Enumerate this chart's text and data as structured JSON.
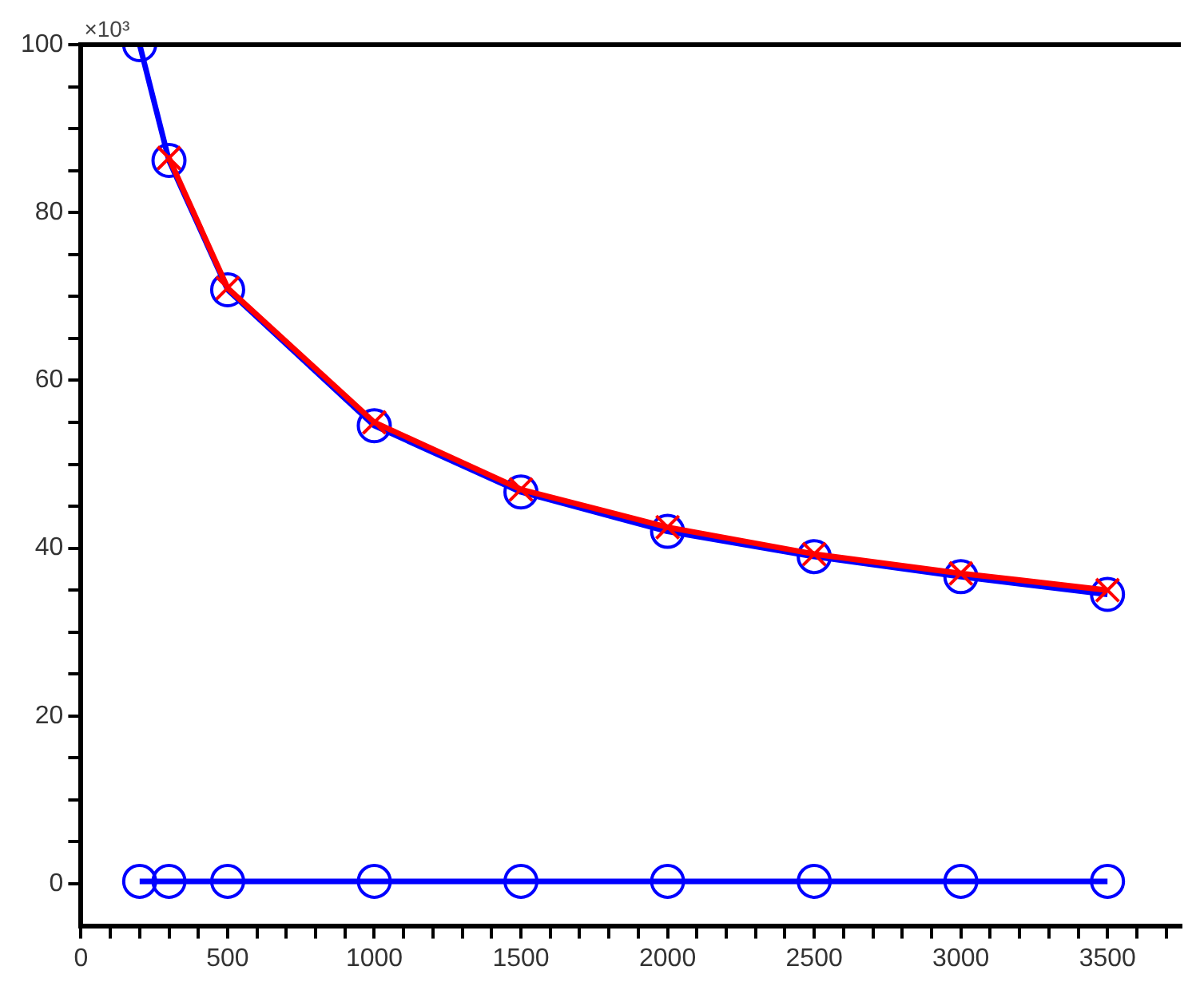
{
  "chart_data": {
    "type": "line",
    "x": [
      200,
      300,
      500,
      1000,
      1500,
      2000,
      2500,
      3000,
      3500
    ],
    "series": [
      {
        "color": "#ff0000",
        "marker": "cross",
        "values": [
          null,
          86.5,
          71,
          55,
          47,
          42.5,
          39.3,
          37,
          35
        ]
      },
      {
        "color": "#0000ff",
        "marker": "circle",
        "values": [
          100,
          86.2,
          70.8,
          54.6,
          46.7,
          42,
          39,
          36.6,
          34.5
        ]
      },
      {
        "color": "#0000ff",
        "marker": "circle",
        "values": [
          0.3,
          0.3,
          0.3,
          0.3,
          0.3,
          0.3,
          0.3,
          0.3,
          0.3
        ]
      }
    ],
    "xlim": [
      0,
      3750
    ],
    "ylim": [
      -5,
      100
    ],
    "xticks": [
      0,
      {
        "value": 100,
        "label": null
      },
      {
        "value": 200,
        "label": null
      },
      {
        "value": 300,
        "label": null
      },
      {
        "value": 400,
        "label": null
      },
      500,
      {
        "value": 600,
        "label": null
      },
      {
        "value": 700,
        "label": null
      },
      {
        "value": 800,
        "label": null
      },
      {
        "value": 900,
        "label": null
      },
      1000,
      {
        "value": 1100,
        "label": null
      },
      {
        "value": 1200,
        "label": null
      },
      {
        "value": 1300,
        "label": null
      },
      {
        "value": 1400,
        "label": null
      },
      1500,
      {
        "value": 1600,
        "label": null
      },
      {
        "value": 1700,
        "label": null
      },
      {
        "value": 1800,
        "label": null
      },
      {
        "value": 1900,
        "label": null
      },
      2000,
      {
        "value": 2100,
        "label": null
      },
      {
        "value": 2200,
        "label": null
      },
      {
        "value": 2300,
        "label": null
      },
      {
        "value": 2400,
        "label": null
      },
      2500,
      {
        "value": 2600,
        "label": null
      },
      {
        "value": 2700,
        "label": null
      },
      {
        "value": 2800,
        "label": null
      },
      {
        "value": 2900,
        "label": null
      },
      3000,
      {
        "value": 3100,
        "label": null
      },
      {
        "value": 3200,
        "label": null
      },
      {
        "value": 3300,
        "label": null
      },
      {
        "value": 3400,
        "label": null
      },
      3500,
      {
        "value": 3600,
        "label": null
      },
      {
        "value": 3700,
        "label": null
      }
    ],
    "yticks": [
      0,
      {
        "value": 5,
        "label": null
      },
      {
        "value": 10,
        "label": null
      },
      {
        "value": 15,
        "label": null
      },
      20,
      {
        "value": 25,
        "label": null
      },
      {
        "value": 30,
        "label": null
      },
      {
        "value": 35,
        "label": null
      },
      40,
      {
        "value": 45,
        "label": null
      },
      {
        "value": 50,
        "label": null
      },
      {
        "value": 55,
        "label": null
      },
      60,
      {
        "value": 65,
        "label": null
      },
      {
        "value": 70,
        "label": null
      },
      {
        "value": 75,
        "label": null
      },
      80,
      {
        "value": 85,
        "label": null
      },
      {
        "value": 90,
        "label": null
      },
      {
        "value": 95,
        "label": null
      },
      100
    ],
    "annotations": [
      "×10³"
    ],
    "grid": false,
    "legend": false,
    "line_style": "solid"
  }
}
